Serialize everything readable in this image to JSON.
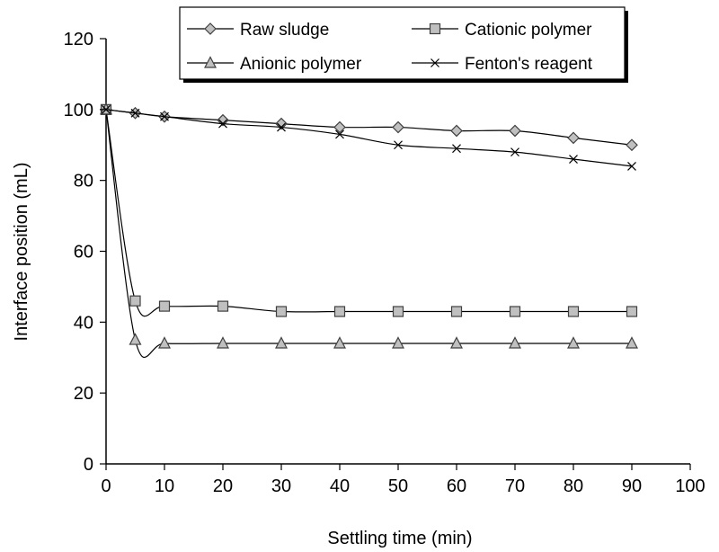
{
  "chart_data": {
    "type": "line",
    "title": "",
    "xlabel": "Settling time (min)",
    "ylabel": "Interface position (mL)",
    "xlim": [
      0,
      100
    ],
    "ylim": [
      0,
      120
    ],
    "x_ticks": [
      "0",
      "10",
      "20",
      "30",
      "40",
      "50",
      "60",
      "70",
      "80",
      "90",
      "100"
    ],
    "y_ticks": [
      "0",
      "20",
      "40",
      "60",
      "80",
      "100",
      "120"
    ],
    "grid": false,
    "legend_position": "top",
    "x": [
      0,
      5,
      10,
      20,
      30,
      40,
      50,
      60,
      70,
      80,
      90
    ],
    "series": [
      {
        "name": "Raw sludge",
        "marker": "diamond",
        "values": [
          100,
          99,
          98,
          97,
          96,
          95,
          95,
          94,
          94,
          92,
          90
        ]
      },
      {
        "name": "Cationic polymer",
        "marker": "square",
        "values": [
          100,
          46,
          44.5,
          44.5,
          43,
          43,
          43,
          43,
          43,
          43,
          43
        ]
      },
      {
        "name": "Anionic polymer",
        "marker": "triangle",
        "values": [
          100,
          35,
          34,
          34,
          34,
          34,
          34,
          34,
          34,
          34,
          34
        ]
      },
      {
        "name": "Fenton's reagent",
        "marker": "x",
        "values": [
          100,
          99,
          98,
          96,
          95,
          93,
          90,
          89,
          88,
          86,
          84
        ]
      }
    ],
    "colors": {
      "line": "#000000",
      "marker_fill": "#c0c0c0",
      "marker_stroke": "#404040"
    }
  }
}
